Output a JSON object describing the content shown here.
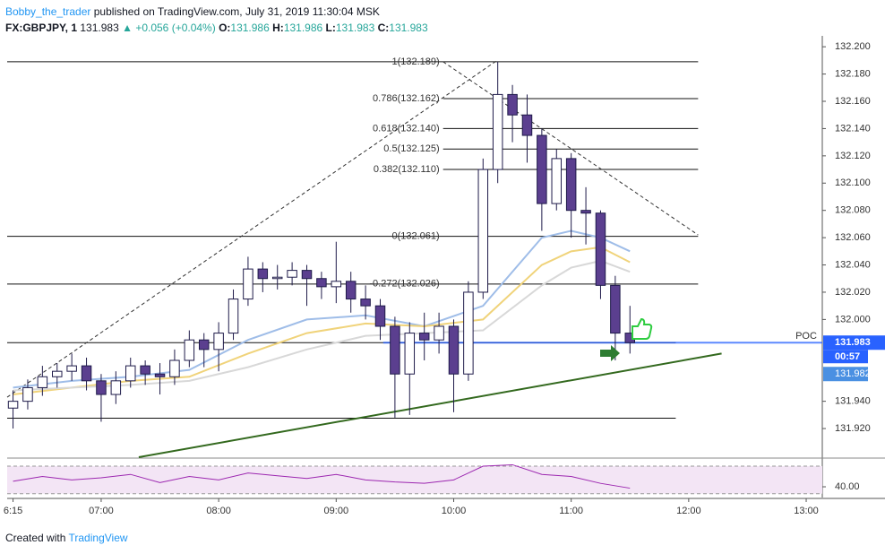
{
  "header": {
    "author": "Bobby_the_trader",
    "published": "published on TradingView.com, July 31, 2019 11:30:04 MSK",
    "symbol": "FX:GBPJPY, 1",
    "last": "131.983",
    "change": "▲ +0.056 (+0.04%)",
    "ohlc": [
      {
        "label": "O:",
        "value": "131.986"
      },
      {
        "label": "H:",
        "value": "131.986"
      },
      {
        "label": "L:",
        "value": "131.983"
      },
      {
        "label": "C:",
        "value": "131.983"
      }
    ]
  },
  "footer": {
    "prefix": "Created with",
    "brand": "TradingView"
  },
  "chart_data": {
    "type": "candlestick",
    "grid": false,
    "up_color": "#ffffff",
    "down_color": "#5b3f8f",
    "outline_color": "#1f1b4a",
    "xlim": [
      6.2,
      13.137
    ],
    "ylim": [
      131.899,
      132.208
    ],
    "xticks": [
      {
        "value": 6.25,
        "label": "6:15"
      },
      {
        "value": 7,
        "label": "07:00"
      },
      {
        "value": 8,
        "label": "08:00"
      },
      {
        "value": 9,
        "label": "09:00"
      },
      {
        "value": 10,
        "label": "10:00"
      },
      {
        "value": 11,
        "label": "11:00"
      },
      {
        "value": 12,
        "label": "12:00"
      },
      {
        "value": 13,
        "label": "13:00"
      }
    ],
    "yticks": [
      {
        "value": 132.2,
        "label": "132.200"
      },
      {
        "value": 132.18,
        "label": "132.180"
      },
      {
        "value": 132.16,
        "label": "132.160"
      },
      {
        "value": 132.14,
        "label": "132.140"
      },
      {
        "value": 132.12,
        "label": "132.120"
      },
      {
        "value": 132.1,
        "label": "132.100"
      },
      {
        "value": 132.08,
        "label": "132.080"
      },
      {
        "value": 132.06,
        "label": "132.060"
      },
      {
        "value": 132.04,
        "label": "132.040"
      },
      {
        "value": 132.02,
        "label": "132.020"
      },
      {
        "value": 132,
        "label": "132.000"
      },
      {
        "value": 131.94,
        "label": "131.940"
      },
      {
        "value": 131.92,
        "label": "131.920"
      }
    ],
    "candles": [
      [
        6.25,
        131.935,
        131.948,
        131.92,
        131.94
      ],
      [
        6.375,
        131.94,
        131.956,
        131.934,
        131.95
      ],
      [
        6.5,
        131.95,
        131.966,
        131.944,
        131.958
      ],
      [
        6.625,
        131.958,
        131.968,
        131.95,
        131.962
      ],
      [
        6.75,
        131.962,
        131.975,
        131.955,
        131.966
      ],
      [
        6.875,
        131.966,
        131.972,
        131.948,
        131.955
      ],
      [
        7,
        131.955,
        131.96,
        131.925,
        131.945
      ],
      [
        7.125,
        131.945,
        131.962,
        131.938,
        131.955
      ],
      [
        7.25,
        131.955,
        131.972,
        131.95,
        131.966
      ],
      [
        7.375,
        131.966,
        131.97,
        131.952,
        131.96
      ],
      [
        7.5,
        131.96,
        131.968,
        131.945,
        131.958
      ],
      [
        7.625,
        131.958,
        131.978,
        131.952,
        131.97
      ],
      [
        7.75,
        131.97,
        131.992,
        131.965,
        131.985
      ],
      [
        7.875,
        131.985,
        131.99,
        131.965,
        131.978
      ],
      [
        8,
        131.978,
        131.998,
        131.962,
        131.99
      ],
      [
        8.125,
        131.99,
        132.022,
        131.985,
        132.015
      ],
      [
        8.25,
        132.015,
        132.046,
        132.01,
        132.037
      ],
      [
        8.375,
        132.037,
        132.042,
        132.02,
        132.03
      ],
      [
        8.5,
        132.03,
        132.04,
        132.022,
        132.031
      ],
      [
        8.625,
        132.031,
        132.042,
        132.025,
        132.036
      ],
      [
        8.75,
        132.036,
        132.04,
        132.01,
        132.03
      ],
      [
        8.875,
        132.03,
        132.035,
        132.015,
        132.024
      ],
      [
        9,
        132.024,
        132.057,
        132.012,
        132.028
      ],
      [
        9.125,
        132.028,
        132.035,
        132.005,
        132.015
      ],
      [
        9.25,
        132.015,
        132.025,
        132,
        132.01
      ],
      [
        9.375,
        132.01,
        132.015,
        131.985,
        131.995
      ],
      [
        9.5,
        131.995,
        132.002,
        131.928,
        131.96
      ],
      [
        9.625,
        131.96,
        131.998,
        131.93,
        131.99
      ],
      [
        9.75,
        131.99,
        132.005,
        131.97,
        131.985
      ],
      [
        9.875,
        131.985,
        132.005,
        131.975,
        131.995
      ],
      [
        10,
        131.995,
        132,
        131.932,
        131.96
      ],
      [
        10.125,
        131.96,
        132.028,
        131.955,
        132.02
      ],
      [
        10.25,
        132.02,
        132.118,
        132.015,
        132.11
      ],
      [
        10.375,
        132.11,
        132.189,
        132.1,
        132.165
      ],
      [
        10.5,
        132.165,
        132.172,
        132.13,
        132.15
      ],
      [
        10.625,
        132.15,
        132.165,
        132.115,
        132.135
      ],
      [
        10.75,
        132.135,
        132.14,
        132.065,
        132.085
      ],
      [
        10.875,
        132.085,
        132.125,
        132.08,
        132.118
      ],
      [
        11,
        132.118,
        132.122,
        132.06,
        132.08
      ],
      [
        11.125,
        132.08,
        132.097,
        132.055,
        132.078
      ],
      [
        11.25,
        132.078,
        132.08,
        132.015,
        132.025
      ],
      [
        11.375,
        132.025,
        132.032,
        131.97,
        131.99
      ],
      [
        11.5,
        131.99,
        132.01,
        131.975,
        131.983
      ]
    ],
    "ma_x": [
      6.25,
      6.75,
      7.25,
      7.75,
      8.25,
      8.75,
      9.25,
      9.75,
      10.25,
      10.75,
      11,
      11.25,
      11.5
    ],
    "series": [
      {
        "color": "#9fbde8",
        "values": [
          131.95,
          131.955,
          131.958,
          131.963,
          131.985,
          132,
          132.003,
          131.995,
          132.01,
          132.06,
          132.065,
          132.06,
          132.05
        ]
      },
      {
        "color": "#f0d37a",
        "values": [
          131.945,
          131.95,
          131.955,
          131.958,
          131.975,
          131.99,
          131.997,
          131.995,
          132,
          132.04,
          132.05,
          132.053,
          132.042
        ]
      },
      {
        "color": "#d8d8d8",
        "values": [
          131.948,
          131.95,
          131.952,
          131.955,
          131.965,
          131.978,
          131.988,
          131.99,
          131.992,
          132.025,
          132.038,
          132.043,
          132.035
        ]
      }
    ],
    "fib": {
      "x": [
        9.91,
        12.08
      ],
      "levels": [
        {
          "label": "1(132.189)",
          "value": 132.189,
          "extend_left": true
        },
        {
          "label": "0.786(132.162)",
          "value": 132.162
        },
        {
          "label": "0.618(132.140)",
          "value": 132.14
        },
        {
          "label": "0.5(132.125)",
          "value": 132.125
        },
        {
          "label": "0.382(132.110)",
          "value": 132.11
        },
        {
          "label": "0(132.061)",
          "value": 132.061,
          "extend_left": true
        },
        {
          "label": "-0.272(132.026)",
          "value": 132.026,
          "extend_left": true
        }
      ]
    },
    "hlines": {
      "x": [
        6.2,
        11.89
      ],
      "values": [
        131.983,
        131.9276
      ]
    },
    "trendlines": [
      {
        "x": [
          7.32,
          12.28
        ],
        "y": [
          131.899,
          131.975
        ],
        "color": "#33691e",
        "dashed": false
      },
      {
        "x": [
          6.2,
          10.37
        ],
        "y": [
          131.943,
          132.19
        ],
        "color": "#333333",
        "dashed": true
      },
      {
        "x": [
          9.91,
          12.08
        ],
        "y": [
          132.189,
          132.062
        ],
        "color": "#333333",
        "dashed": true
      }
    ],
    "poc": {
      "label": "POC",
      "value": 131.983,
      "from": 9.4
    },
    "last_price": 131.983,
    "countdown": "00:57",
    "bid_price": 131.982,
    "rsi": {
      "color": "#9c27b0",
      "x": [
        6.25,
        6.5,
        6.75,
        7,
        7.25,
        7.5,
        7.75,
        8,
        8.25,
        8.5,
        8.75,
        9,
        9.25,
        9.5,
        9.75,
        10,
        10.25,
        10.5,
        10.75,
        11,
        11.25,
        11.5
      ],
      "values": [
        48,
        55,
        50,
        53,
        58,
        46,
        55,
        50,
        60,
        56,
        52,
        58,
        50,
        47,
        45,
        50,
        70,
        72,
        58,
        55,
        45,
        38
      ],
      "ylim": [
        24.4,
        80.4
      ],
      "bands": [
        70,
        30
      ],
      "yticks": [
        {
          "value": 40,
          "label": "40.00"
        }
      ]
    }
  }
}
